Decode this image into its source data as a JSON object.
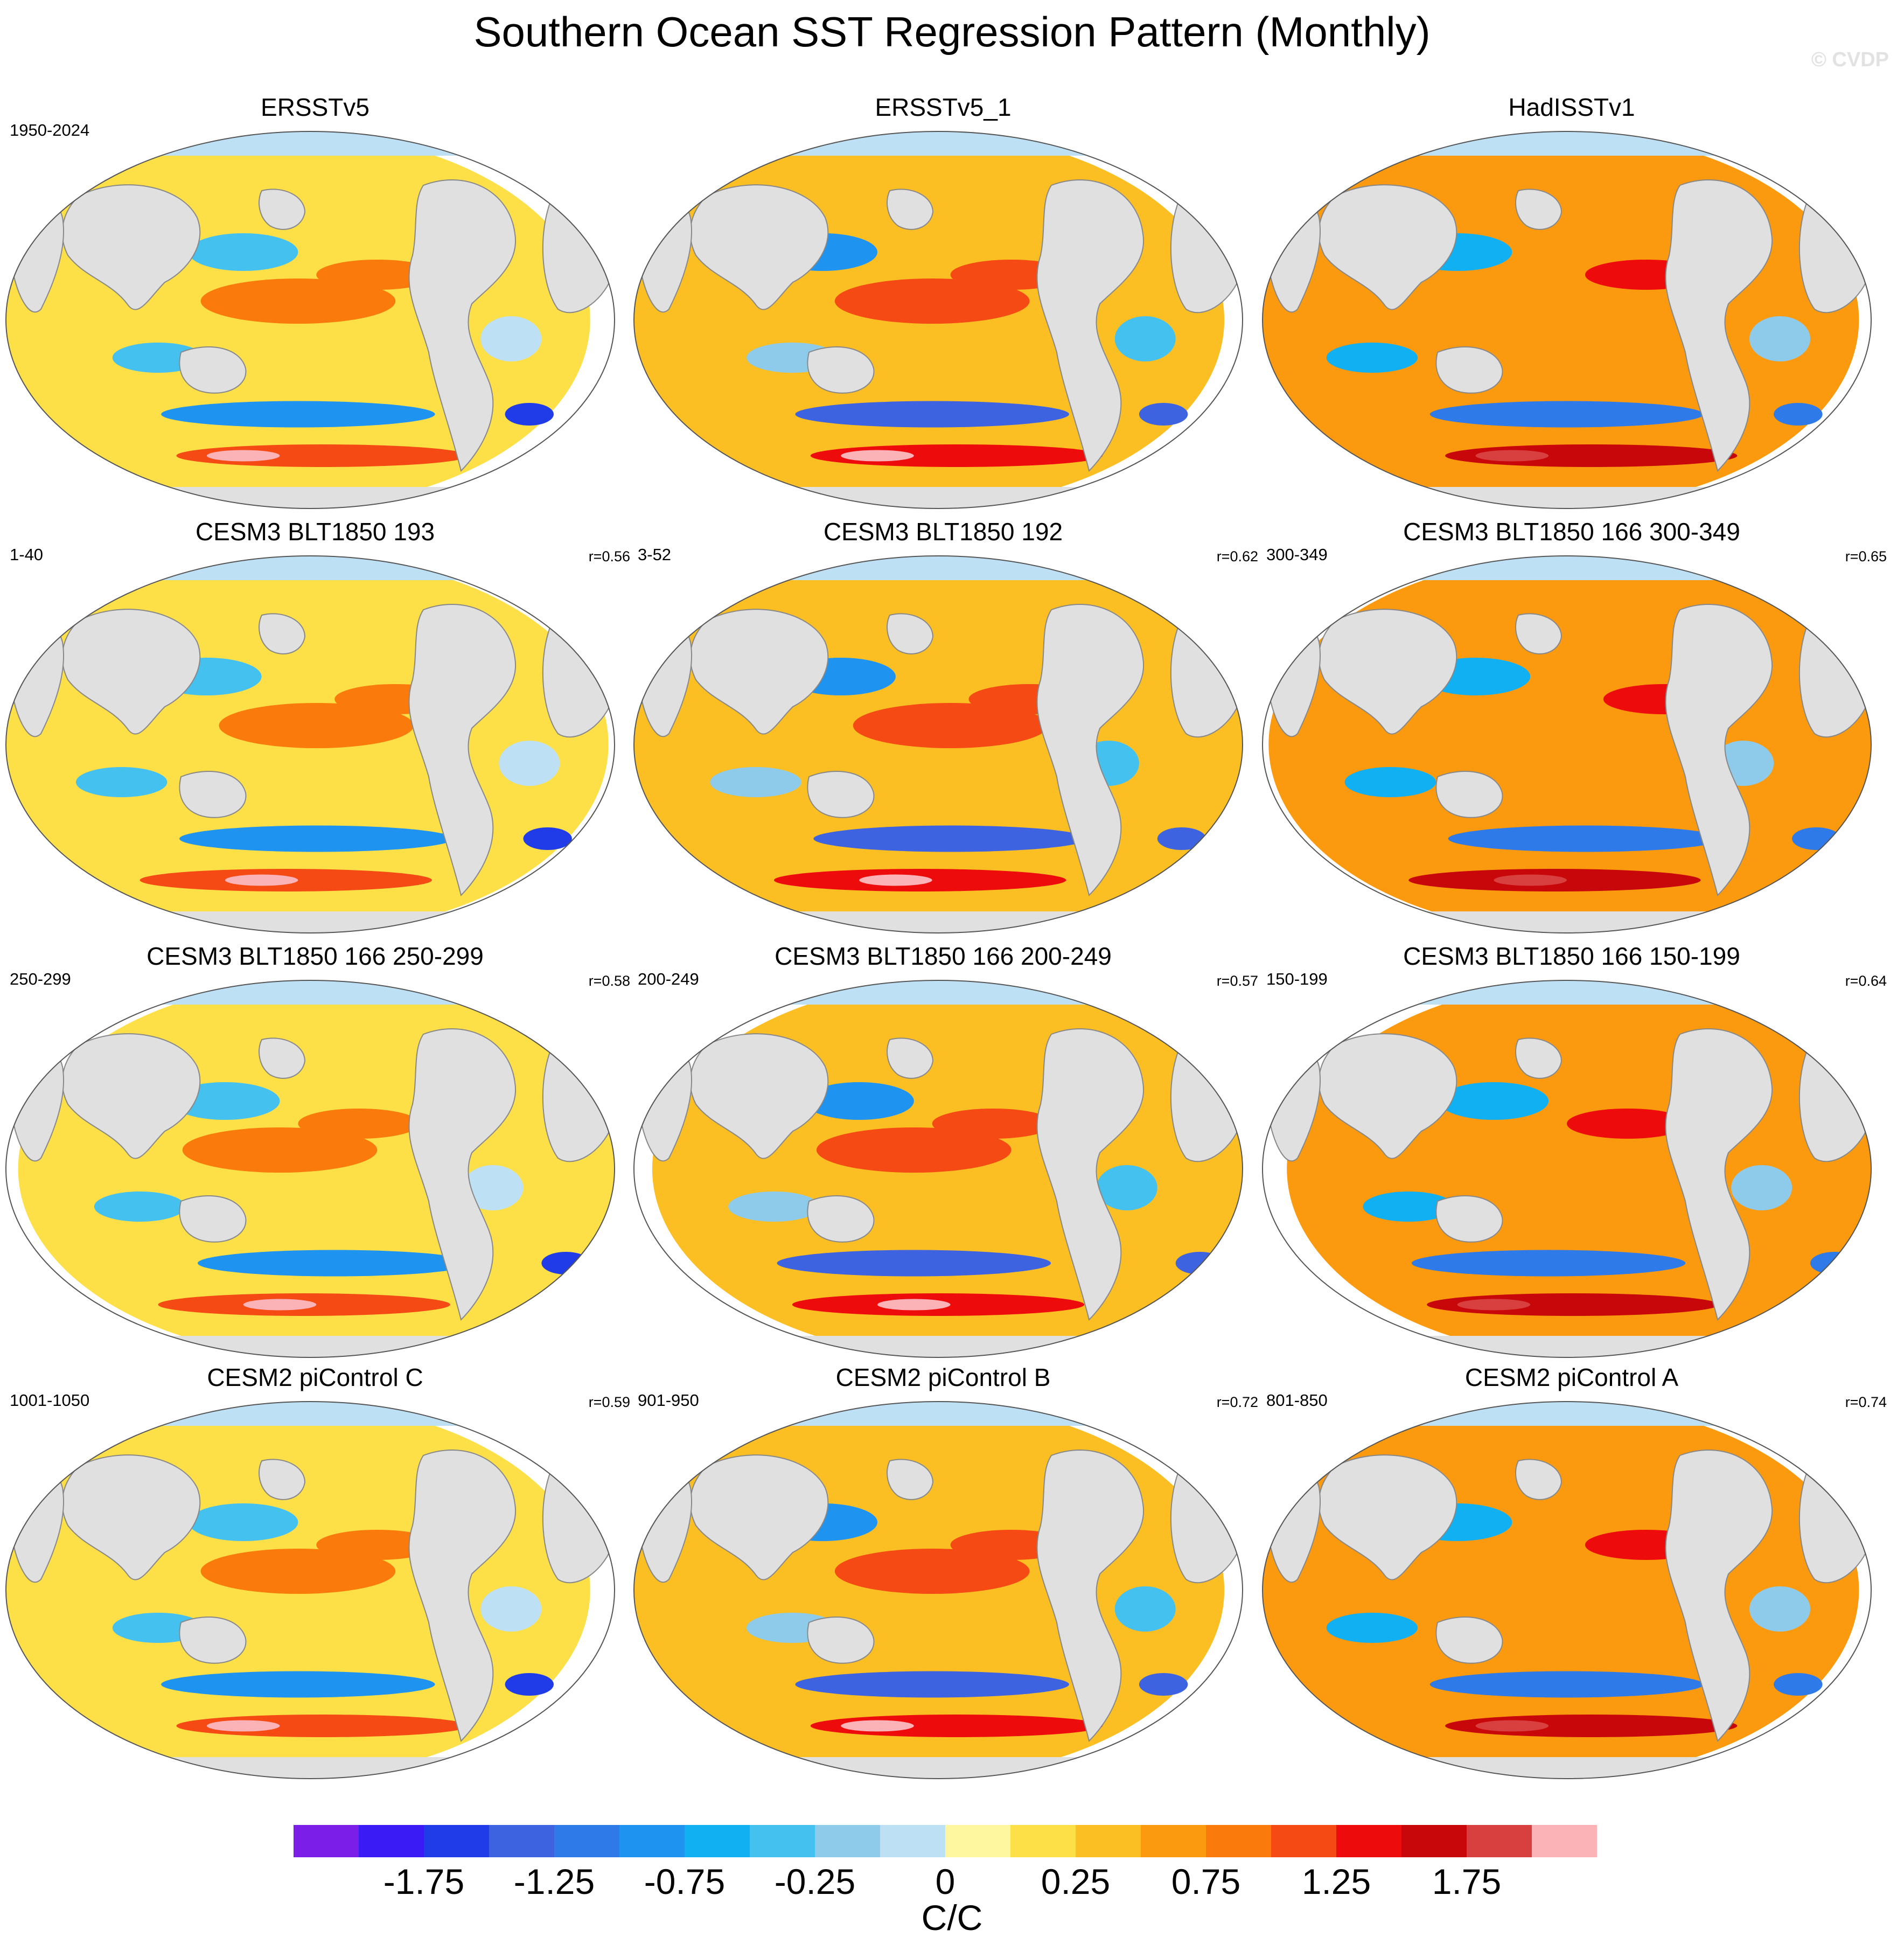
{
  "title": "Southern Ocean SST Regression Pattern (Monthly)",
  "watermark": "© CVDP",
  "panels": [
    {
      "title": "ERSSTv5",
      "period": "1950-2024",
      "r": ""
    },
    {
      "title": "ERSSTv5_1",
      "period": "",
      "r": ""
    },
    {
      "title": "HadISSTv1",
      "period": "",
      "r": ""
    },
    {
      "title": "CESM3 BLT1850 193",
      "period": "1-40",
      "r": "r=0.56"
    },
    {
      "title": "CESM3 BLT1850 192",
      "period": "3-52",
      "r": "r=0.62"
    },
    {
      "title": "CESM3 BLT1850 166 300-349",
      "period": "300-349",
      "r": "r=0.65"
    },
    {
      "title": "CESM3 BLT1850 166 250-299",
      "period": "250-299",
      "r": "r=0.58"
    },
    {
      "title": "CESM3 BLT1850 166 200-249",
      "period": "200-249",
      "r": "r=0.57"
    },
    {
      "title": "CESM3 BLT1850 166 150-199",
      "period": "150-199",
      "r": "r=0.64"
    },
    {
      "title": "CESM2 piControl C",
      "period": "1001-1050",
      "r": "r=0.59"
    },
    {
      "title": "CESM2 piControl B",
      "period": "901-950",
      "r": "r=0.72"
    },
    {
      "title": "CESM2 piControl A",
      "period": "801-850",
      "r": "r=0.74"
    }
  ],
  "colorbar": {
    "units": "C/C",
    "labels": [
      "-1.75",
      "-1.25",
      "-0.75",
      "-0.25",
      "0",
      "0.25",
      "0.75",
      "1.25",
      "1.75"
    ],
    "colors": [
      "#7b1fe8",
      "#3a1bf5",
      "#1f3ce8",
      "#3e63e0",
      "#2e7ae8",
      "#1f93f0",
      "#11b0f2",
      "#45c1f0",
      "#8ecbea",
      "#bde0f5",
      "#fff6a0",
      "#fde047",
      "#fbbf24",
      "#fb9a0e",
      "#fa7a0c",
      "#f54a14",
      "#ee0b0b",
      "#c8070b",
      "#d84040",
      "#fbb3b8"
    ]
  },
  "land_color": "#e0e0e0"
}
